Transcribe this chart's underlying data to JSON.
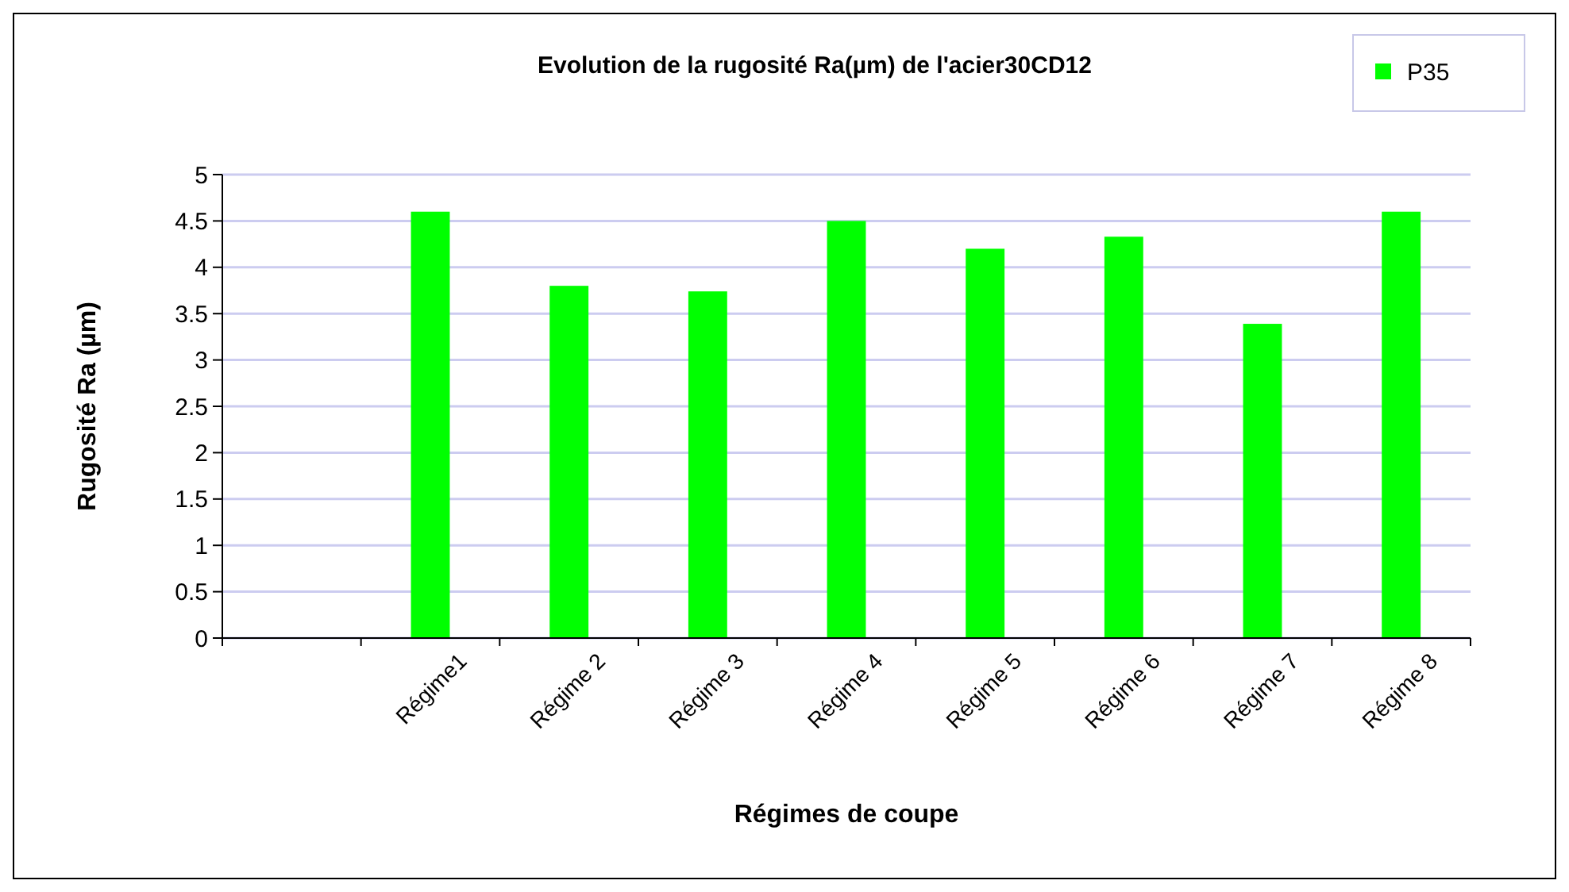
{
  "chart_data": {
    "type": "bar",
    "title": "Evolution de la rugosité Ra(µm) de l'acier30CD12",
    "xlabel": "Régimes de coupe",
    "ylabel": "Rugosité Ra (µm)",
    "categories": [
      null,
      "Régime1",
      "Régime 2",
      "Régime 3",
      "Régime 4",
      "Régime 5",
      "Régime 6",
      "Régime 7",
      "Régime 8"
    ],
    "series": [
      {
        "name": "P35",
        "color": "#00ff00",
        "values": [
          null,
          4.6,
          3.8,
          3.74,
          4.5,
          4.2,
          4.33,
          3.39,
          4.6
        ]
      }
    ],
    "ylim": [
      0,
      5
    ],
    "yticks": [
      0,
      0.5,
      1,
      1.5,
      2,
      2.5,
      3,
      3.5,
      4,
      4.5,
      5
    ],
    "grid": "y",
    "legend": "top right"
  }
}
